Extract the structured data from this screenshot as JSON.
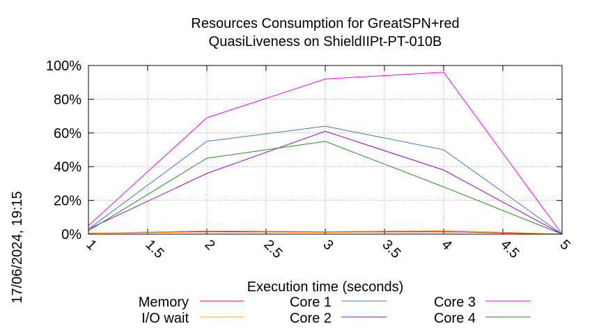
{
  "chart_data": {
    "type": "line",
    "title_lines": [
      "Resources Consumption for GreatSPN+red",
      "QuasiLiveness on ShieldIIPt-PT-010B"
    ],
    "xlabel": "Execution time (seconds)",
    "ylabel": "",
    "xlim": [
      1,
      5
    ],
    "ylim": [
      0,
      100
    ],
    "x_ticks": [
      "1",
      "1.5",
      "2",
      "2.5",
      "3",
      "3.5",
      "4",
      "4.5",
      "5"
    ],
    "y_ticks": [
      "0%",
      "20%",
      "40%",
      "60%",
      "80%",
      "100%"
    ],
    "grid": true,
    "legend_placement": "bottom",
    "timestamp": "17/06/2024, 19:15",
    "series": [
      {
        "name": "Memory",
        "color": "#ff0000",
        "x": [
          1,
          2,
          3,
          4,
          5
        ],
        "values": [
          0.5,
          1.5,
          1.2,
          1.5,
          0
        ]
      },
      {
        "name": "I/O wait",
        "color": "#ffa500",
        "x": [
          1,
          2,
          3,
          4,
          5
        ],
        "values": [
          0.5,
          2.0,
          1.5,
          2.2,
          0
        ]
      },
      {
        "name": "Core 1",
        "color": "#4472c4",
        "x": [
          1,
          2,
          3,
          4,
          5
        ],
        "values": [
          3,
          55,
          64,
          50,
          0
        ]
      },
      {
        "name": "Core 2",
        "color": "#9400d3",
        "x": [
          1,
          2,
          3,
          4,
          5
        ],
        "values": [
          3,
          36,
          61,
          38,
          0
        ]
      },
      {
        "name": "Core 3",
        "color": "#ff00ff",
        "x": [
          1,
          2,
          3,
          4,
          5
        ],
        "values": [
          5,
          69,
          92,
          96,
          0
        ]
      },
      {
        "name": "Core 4",
        "color": "#228b22",
        "x": [
          1,
          2,
          3,
          4,
          5
        ],
        "values": [
          2,
          45,
          55,
          28,
          0
        ]
      }
    ]
  }
}
